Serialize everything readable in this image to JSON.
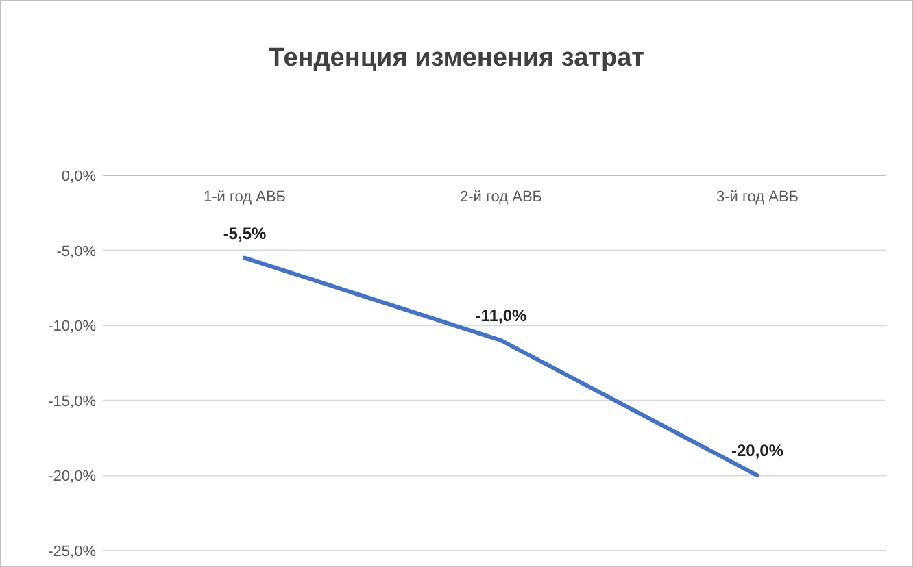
{
  "chart_data": {
    "type": "line",
    "title": "Тенденция изменения затрат",
    "categories": [
      "1-й год АВБ",
      "2-й год АВБ",
      "3-й год АВБ"
    ],
    "series": [
      {
        "color": "#4472c4",
        "values": [
          -5.5,
          -11.0,
          -20.0
        ],
        "value_labels": [
          "-5,5%",
          "-11,0%",
          "-20,0%"
        ]
      }
    ],
    "ylim": [
      -25,
      0
    ],
    "yticks": [
      {
        "value": 0,
        "label": "0,0%"
      },
      {
        "value": -5,
        "label": "-5,0%"
      },
      {
        "value": -10,
        "label": "-10,0%"
      },
      {
        "value": -15,
        "label": "-15,0%"
      },
      {
        "value": -20,
        "label": "-20,0%"
      },
      {
        "value": -25,
        "label": "-25,0%"
      }
    ],
    "grid": "y",
    "marker": "none",
    "line_style": "solid"
  }
}
